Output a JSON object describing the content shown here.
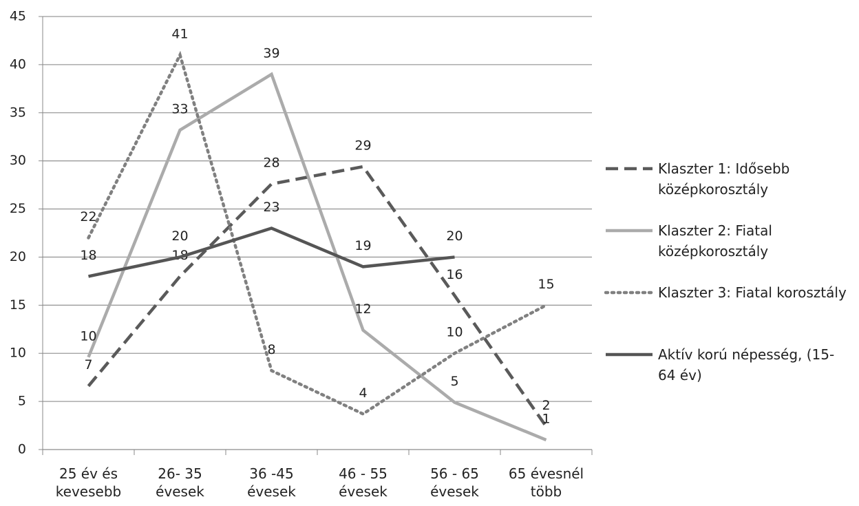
{
  "chart_data": {
    "type": "line",
    "categories": [
      "25 év és kevesebb",
      "26- 35 évesek",
      "36 -45 évesek",
      "46 - 55 évesek",
      "56 - 65 évesek",
      "65 évesnél több"
    ],
    "ylim": [
      0,
      45
    ],
    "yticks": [
      0,
      5,
      10,
      15,
      20,
      25,
      30,
      35,
      40,
      45
    ],
    "grid": true,
    "legend": "right",
    "series": [
      {
        "name": "Klaszter 1: Idősebb középkorosztály",
        "color": "#5a5a5a",
        "dash": "dashed",
        "values": [
          6.6,
          18,
          27.6,
          29.4,
          16,
          2.4
        ],
        "value_labels": [
          "7",
          "18",
          "28",
          "29",
          "16",
          "2"
        ]
      },
      {
        "name": "Klaszter 2: Fiatal középkorosztály",
        "color": "#ababab",
        "dash": "solid",
        "values": [
          9.6,
          33.2,
          39,
          12.4,
          4.9,
          1
        ],
        "value_labels": [
          "10",
          "33",
          "39",
          "12",
          "5",
          "1"
        ]
      },
      {
        "name": "Klaszter 3: Fiatal korosztály",
        "color": "#808080",
        "dash": "dotted",
        "values": [
          22,
          41,
          8.2,
          3.7,
          10,
          15
        ],
        "value_labels": [
          "22",
          "41",
          "8",
          "4",
          "10",
          "15"
        ]
      },
      {
        "name": "Aktív korú népesség, (15-64 év)",
        "color": "#555555",
        "dash": "solid",
        "values": [
          18,
          20,
          23,
          19,
          20,
          null
        ],
        "value_labels": [
          "18",
          "20",
          "23",
          "19",
          "20",
          null
        ]
      }
    ]
  }
}
